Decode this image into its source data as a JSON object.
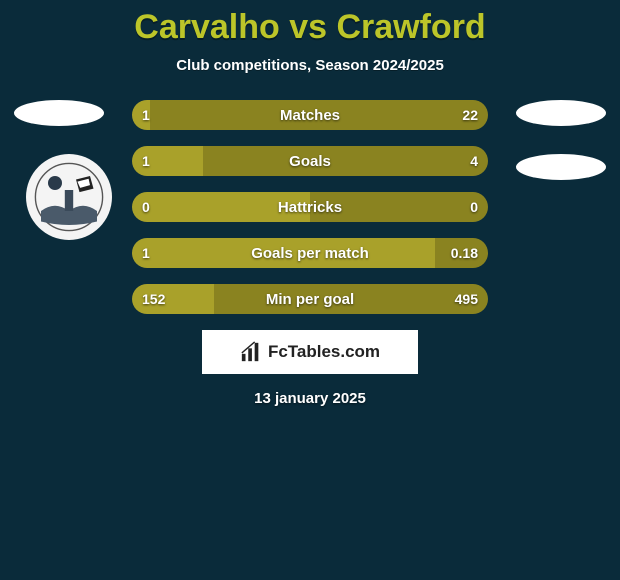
{
  "title": "Carvalho vs Crawford",
  "subtitle": "Club competitions, Season 2024/2025",
  "date": "13 january 2025",
  "brand": "FcTables.com",
  "colors": {
    "background": "#0a2b3a",
    "accent": "#bcc529",
    "bar_left": "#a9a12a",
    "bar_right": "#8a8320",
    "text": "#ffffff"
  },
  "bars": [
    {
      "label": "Matches",
      "left_val": "1",
      "right_val": "22",
      "left_pct": 5,
      "right_pct": 95
    },
    {
      "label": "Goals",
      "left_val": "1",
      "right_val": "4",
      "left_pct": 20,
      "right_pct": 80
    },
    {
      "label": "Hattricks",
      "left_val": "0",
      "right_val": "0",
      "left_pct": 50,
      "right_pct": 50
    },
    {
      "label": "Goals per match",
      "left_val": "1",
      "right_val": "0.18",
      "left_pct": 85,
      "right_pct": 15
    },
    {
      "label": "Min per goal",
      "left_val": "152",
      "right_val": "495",
      "left_pct": 23,
      "right_pct": 77
    }
  ]
}
